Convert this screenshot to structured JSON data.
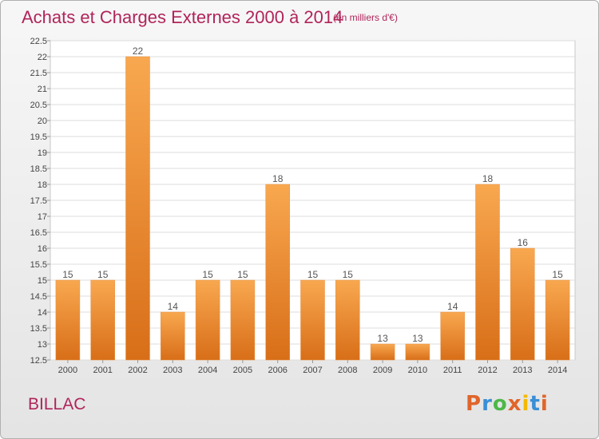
{
  "header": {
    "title": "Achats et Charges Externes 2000 à 2014",
    "subtitle": "(en milliers d'€)"
  },
  "footer": {
    "commune": "BILLAC",
    "logo_text": "Proxiti"
  },
  "colors": {
    "title": "#b0245a",
    "bar_light": "#f8a850",
    "bar_dark": "#d86e18",
    "logo_letters": [
      "#e0652a",
      "#3a8fd6",
      "#4db848",
      "#e0652a",
      "#f5b800",
      "#3a8fd6",
      "#e0652a"
    ]
  },
  "chart_data": {
    "type": "bar",
    "categories": [
      "2000",
      "2001",
      "2002",
      "2003",
      "2004",
      "2005",
      "2006",
      "2007",
      "2008",
      "2009",
      "2010",
      "2011",
      "2012",
      "2013",
      "2014"
    ],
    "values": [
      15,
      15,
      22,
      14,
      15,
      15,
      18,
      15,
      15,
      13,
      13,
      14,
      18,
      16,
      15
    ],
    "data_labels": [
      "15",
      "15",
      "22",
      "14",
      "15",
      "15",
      "18",
      "15",
      "15",
      "13",
      "13",
      "14",
      "18",
      "16",
      "15"
    ],
    "y_ticks": [
      "12.5",
      "13",
      "13.5",
      "14",
      "14.5",
      "15",
      "15.5",
      "16",
      "16.5",
      "17",
      "17.5",
      "18",
      "18.5",
      "19",
      "19.5",
      "20",
      "20.5",
      "21",
      "21.5",
      "22",
      "22.5"
    ],
    "ylim": [
      12.5,
      22.5
    ],
    "grid": true,
    "title": "Achats et Charges Externes 2000 à 2014",
    "xlabel": "",
    "ylabel": ""
  }
}
